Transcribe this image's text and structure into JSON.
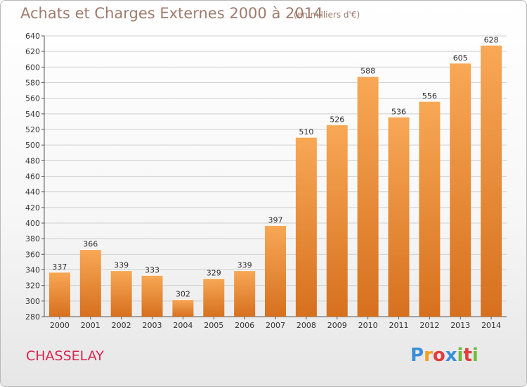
{
  "header": {
    "title": "Achats et Charges Externes 2000 à 2014",
    "subtitle": "(en milliers d'€)"
  },
  "footer": {
    "town": "CHASSELAY",
    "logo_letters": [
      "P",
      "r",
      "o",
      "x",
      "i",
      "t",
      "i"
    ]
  },
  "colors": {
    "bar_light": "#f8a856",
    "bar_dark": "#d6701e",
    "grid": "#cfcfcf",
    "title": "#a07b6d",
    "town": "#d8244e"
  },
  "chart_data": {
    "type": "bar",
    "title": "Achats et Charges Externes 2000 à 2014",
    "subtitle": "(en milliers d'€)",
    "categories": [
      "2000",
      "2001",
      "2002",
      "2003",
      "2004",
      "2005",
      "2006",
      "2007",
      "2008",
      "2009",
      "2010",
      "2011",
      "2012",
      "2013",
      "2014"
    ],
    "values": [
      337,
      366,
      339,
      333,
      302,
      329,
      339,
      397,
      510,
      526,
      588,
      536,
      556,
      605,
      628
    ],
    "yticks": [
      280,
      300,
      320,
      340,
      360,
      380,
      400,
      420,
      440,
      460,
      480,
      500,
      520,
      540,
      560,
      580,
      600,
      620,
      640
    ],
    "ylim": [
      280,
      640
    ],
    "grid": true,
    "xlabel": "",
    "ylabel": ""
  }
}
